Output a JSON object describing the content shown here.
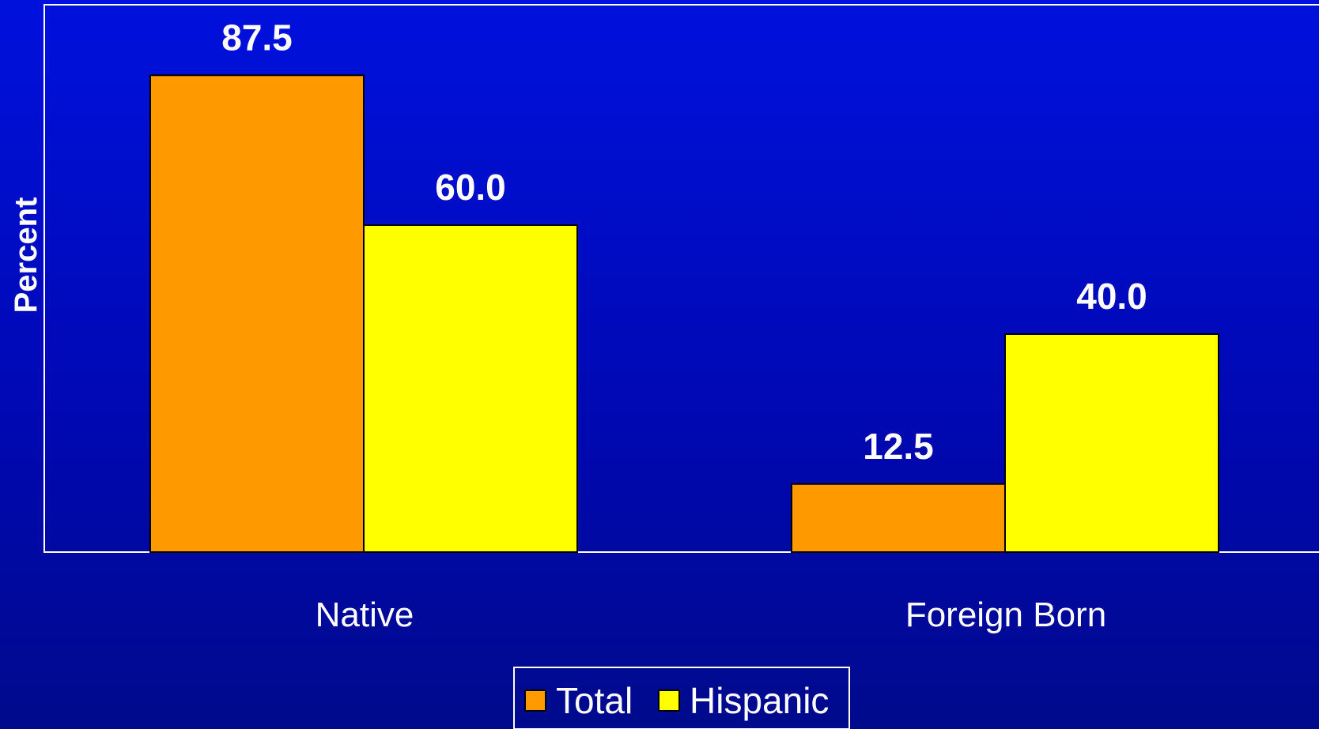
{
  "chart_data": {
    "type": "bar",
    "ylabel": "Percent",
    "xlabel": "",
    "categories": [
      "Native",
      "Foreign Born"
    ],
    "ylim": [
      0,
      100
    ],
    "grid": false,
    "legend_position": "bottom",
    "series": [
      {
        "name": "Total",
        "values": [
          87.5,
          12.5
        ],
        "labels": [
          "87.5",
          "12.5"
        ],
        "color": "#ff9900"
      },
      {
        "name": "Hispanic",
        "values": [
          60.0,
          40.0
        ],
        "labels": [
          "60.0",
          "40.0"
        ],
        "color": "#ffff00"
      }
    ]
  }
}
